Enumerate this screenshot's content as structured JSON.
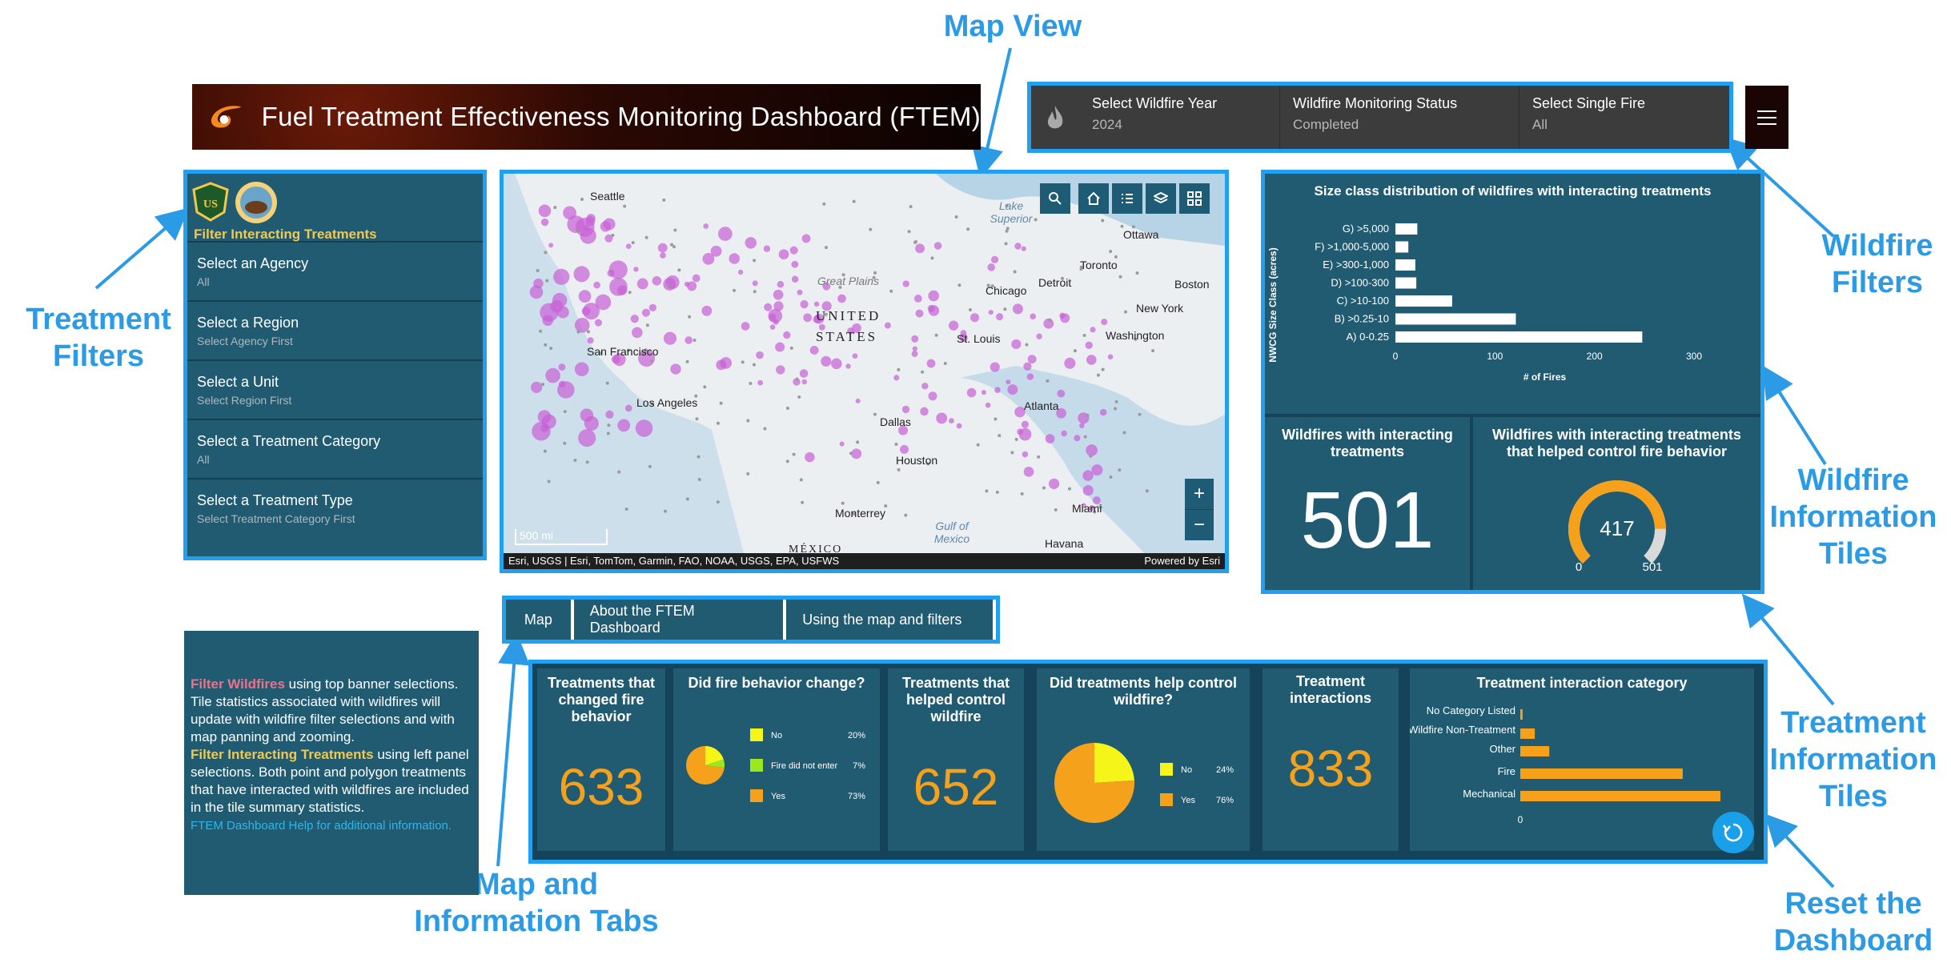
{
  "annotations": {
    "map_view": "Map View",
    "wildfire_filters": [
      "Wildfire",
      "Filters"
    ],
    "treatment_filters": [
      "Treatment",
      "Filters"
    ],
    "wildfire_info_tiles": [
      "Wildfire",
      "Information",
      "Tiles"
    ],
    "treatment_info_tiles": [
      "Treatment",
      "Information",
      "Tiles"
    ],
    "map_info_tabs": [
      "Map and",
      "Information Tabs"
    ],
    "reset": [
      "Reset the",
      "Dashboard"
    ]
  },
  "header": {
    "title": "Fuel Treatment Effectiveness Monitoring Dashboard (FTEM)"
  },
  "wildfire_filters": [
    {
      "label": "Select Wildfire Year",
      "value": "2024"
    },
    {
      "label": "Wildfire Monitoring Status",
      "value": "Completed"
    },
    {
      "label": "Select Single Fire",
      "value": "All"
    }
  ],
  "treatment_filters": {
    "header": "Filter Interacting Treatments",
    "items": [
      {
        "label": "Select an Agency",
        "value": "All"
      },
      {
        "label": "Select a Region",
        "value": "Select Agency First"
      },
      {
        "label": "Select a Unit",
        "value": "Select Region First"
      },
      {
        "label": "Select a Treatment Category",
        "value": "All"
      },
      {
        "label": "Select a Treatment Type",
        "value": "Select Treatment Category First"
      }
    ]
  },
  "map": {
    "cities": [
      "Seattle",
      "Ottawa",
      "Toronto",
      "Boston",
      "Chicago",
      "Detroit",
      "New York",
      "Washington",
      "St. Louis",
      "San Francisco",
      "Los Angeles",
      "Dallas",
      "Houston",
      "Atlanta",
      "Miami",
      "Havana",
      "Monterrey"
    ],
    "labels": {
      "us1": "UNITED",
      "us2": "STATES",
      "mexico": "MÉXICO",
      "great_plains": "Great Plains",
      "lake": "Lake Superior",
      "gulf": "Gulf of Mexico"
    },
    "scale": "500 mi",
    "attribution": "Esri, USGS | Esri, TomTom, Garmin, FAO, NOAA, USGS, EPA, USFWS",
    "powered": "Powered by Esri",
    "zoom_in": "+",
    "zoom_out": "−"
  },
  "size_chart": {
    "title": "Size class distribution of wildfires with interacting treatments",
    "ylabel": "NWCG Size Class (acres)",
    "xlabel": "# of Fires"
  },
  "wildfire_tiles": {
    "count_title": "Wildfires with interacting treatments",
    "count_value": "501",
    "gauge_title": "Wildfires with interacting treatments that helped control fire behavior",
    "gauge_value": "417",
    "gauge_min": "0",
    "gauge_max": "501",
    "gauge_fraction": 0.832
  },
  "tabs": [
    "Map",
    "About the FTEM Dashboard",
    "Using the map and filters"
  ],
  "help": {
    "p1_hl": "Filter Wildfires",
    "p1": " using top banner selections. Tile statistics associated with wildfires will update with wildfire filter selections and with map panning and zooming.",
    "p2_hl": "Filter Interacting Treatments",
    "p2": " using left panel selections. Both point and polygon treatments that have interacted with wildfires are included in the tile summary statistics.",
    "link": "FTEM Dashboard Help for additional information."
  },
  "treatment_tiles": {
    "changed_title": "Treatments that changed fire behavior",
    "changed_value": "633",
    "change_pie_title": "Did fire behavior change?",
    "helped_title": "Treatments that helped control wildfire",
    "helped_value": "652",
    "help_pie_title": "Did treatments help control wildfire?",
    "interactions_title": "Treatment interactions",
    "interactions_value": "833",
    "category_title": "Treatment interaction category"
  },
  "chart_data": [
    {
      "type": "bar",
      "orientation": "horizontal",
      "title": "Size class distribution of wildfires with interacting treatments",
      "xlabel": "# of Fires",
      "ylabel": "NWCG Size Class (acres)",
      "categories": [
        "G) >5,000",
        "F) >1,000-5,000",
        "E) >300-1,000",
        "D) >100-300",
        "C) >10-100",
        "B) >0.25-10",
        "A) 0-0.25"
      ],
      "values": [
        22,
        13,
        20,
        21,
        57,
        121,
        248
      ],
      "xlim": [
        0,
        300
      ],
      "xticks": [
        "0",
        "100",
        "200",
        "300"
      ],
      "color": "#ffffff"
    },
    {
      "type": "pie",
      "title": "Did fire behavior change?",
      "labels": [
        "No",
        "Fire did not enter",
        "Yes"
      ],
      "values": [
        20,
        7,
        73
      ],
      "value_labels": [
        "20%",
        "7%",
        "73%"
      ],
      "colors": [
        "#f5f51a",
        "#9be81c",
        "#f5a11b"
      ]
    },
    {
      "type": "pie",
      "title": "Did treatments help control wildfire?",
      "labels": [
        "No",
        "Yes"
      ],
      "values": [
        24,
        76
      ],
      "value_labels": [
        "24%",
        "76%"
      ],
      "colors": [
        "#f5f51a",
        "#f5a11b"
      ]
    },
    {
      "type": "bar",
      "orientation": "horizontal",
      "title": "Treatment interaction category",
      "categories": [
        "No Category Listed",
        "Wildfire Non-Treatment",
        "Other",
        "Fire",
        "Mechanical"
      ],
      "values": [
        4,
        25,
        50,
        280,
        345
      ],
      "xticks": [
        "0"
      ],
      "color": "#f5a11b"
    }
  ]
}
